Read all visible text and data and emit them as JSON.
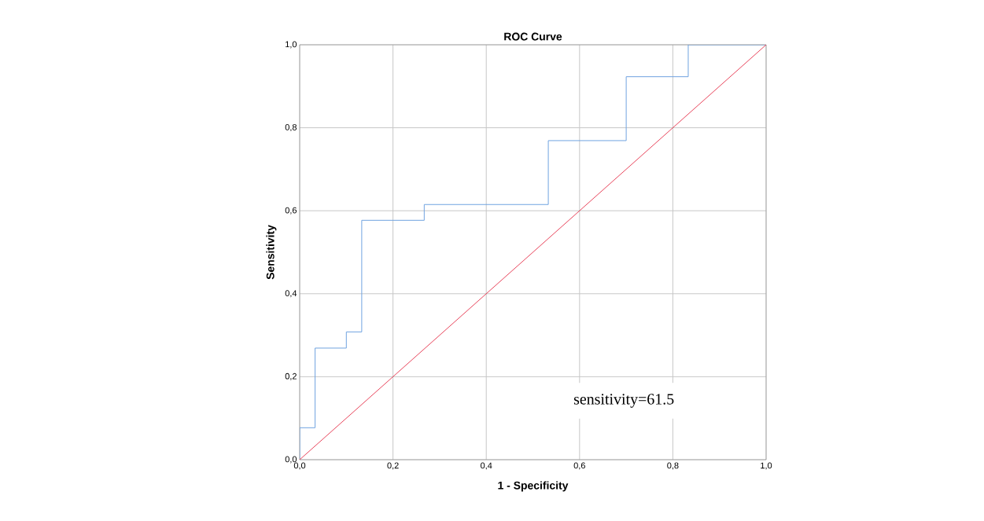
{
  "chart_data": {
    "type": "step",
    "title": "ROC Curve",
    "xlabel": "1 - Specificity",
    "ylabel": "Sensitivity",
    "series": [
      {
        "color": "#6fa3e0",
        "x": [
          0,
          0,
          0.033,
          0.1,
          0.133,
          0.267,
          0.533,
          0.7,
          0.833,
          1
        ],
        "values": [
          0,
          0.077,
          0.269,
          0.308,
          0.577,
          0.615,
          0.769,
          0.923,
          1,
          1
        ]
      },
      {
        "type": "line",
        "color": "#e8435a",
        "x": [
          0,
          1
        ],
        "values": [
          0,
          1
        ]
      }
    ],
    "xlim": [
      0,
      1
    ],
    "ylim": [
      0,
      1
    ],
    "xticks": [
      {
        "value": 0,
        "label": "0,0"
      },
      {
        "value": 0.2,
        "label": "0,2"
      },
      {
        "value": 0.4,
        "label": "0,4"
      },
      {
        "value": 0.6,
        "label": "0,6"
      },
      {
        "value": 0.8,
        "label": "0,8"
      },
      {
        "value": 1,
        "label": "1,0"
      }
    ],
    "yticks": [
      {
        "value": 0,
        "label": "0,0"
      },
      {
        "value": 0.2,
        "label": "0,2"
      },
      {
        "value": 0.4,
        "label": "0,4"
      },
      {
        "value": 0.6,
        "label": "0,6"
      },
      {
        "value": 0.8,
        "label": "0,8"
      },
      {
        "value": 1,
        "label": "1,0"
      }
    ],
    "grid": true,
    "marker": "none",
    "annotations": [
      "sensitivity=61.5"
    ]
  }
}
